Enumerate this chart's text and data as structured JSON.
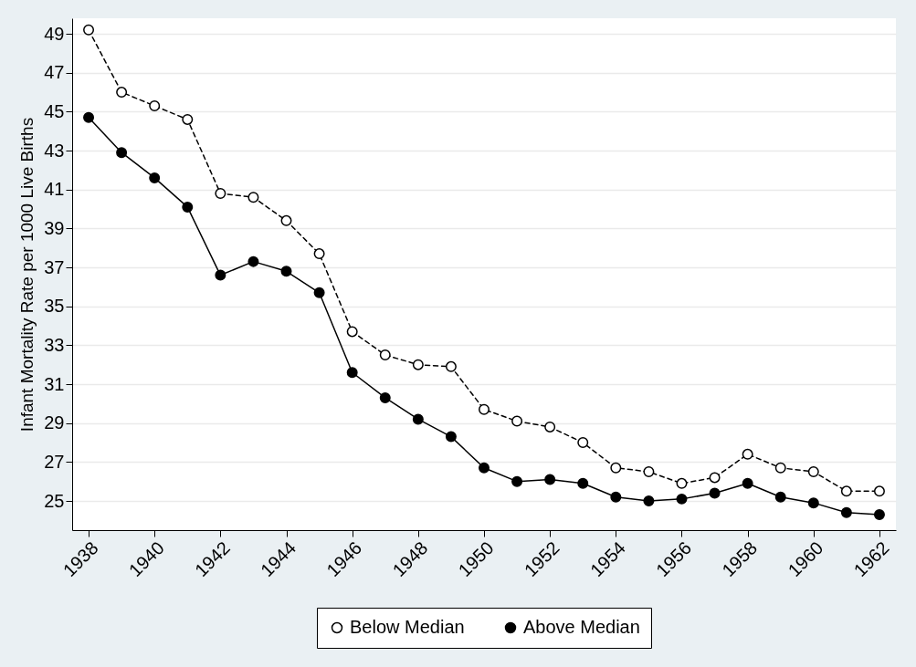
{
  "chart_data": {
    "type": "line",
    "ylabel": "Infant Mortality Rate per 1000 Live Births",
    "x": [
      1938,
      1939,
      1940,
      1941,
      1942,
      1943,
      1944,
      1945,
      1946,
      1947,
      1948,
      1949,
      1950,
      1951,
      1952,
      1953,
      1954,
      1955,
      1956,
      1957,
      1958,
      1959,
      1960,
      1961,
      1962
    ],
    "series": [
      {
        "name": "Below Median",
        "color": "#000000",
        "line_style": "dashed",
        "values": [
          49.2,
          46.0,
          45.3,
          44.6,
          40.8,
          40.6,
          39.4,
          37.7,
          33.7,
          32.5,
          32.0,
          31.9,
          29.7,
          29.1,
          28.8,
          28.0,
          26.7,
          26.5,
          25.9,
          26.2,
          27.4,
          26.7,
          26.5,
          25.5,
          25.5
        ]
      },
      {
        "name": "Above Median",
        "color": "#000000",
        "line_style": "solid",
        "values": [
          44.7,
          42.9,
          41.6,
          40.1,
          36.6,
          37.3,
          36.8,
          35.7,
          31.6,
          30.3,
          29.2,
          28.3,
          26.7,
          26.0,
          26.1,
          25.9,
          25.2,
          25.0,
          25.1,
          25.4,
          25.9,
          25.2,
          24.9,
          24.4,
          24.3
        ]
      }
    ],
    "xlim": [
      1937.5,
      1962.5
    ],
    "xticks": [
      1938,
      1940,
      1942,
      1944,
      1946,
      1948,
      1950,
      1952,
      1954,
      1956,
      1958,
      1960,
      1962
    ],
    "ylim": [
      23.5,
      49.8
    ],
    "yticks": [
      25,
      27,
      29,
      31,
      33,
      35,
      37,
      39,
      41,
      43,
      45,
      47,
      49
    ],
    "grid": "y",
    "legend": "bottom",
    "marker": "circle"
  }
}
